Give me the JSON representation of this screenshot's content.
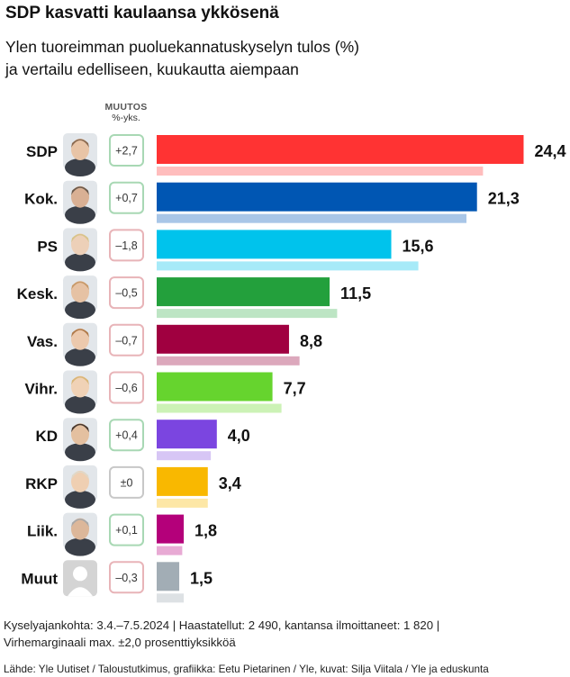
{
  "header": {
    "title": "SDP kasvatti kaulaansa ykkösenä",
    "subtitle_line1": "Ylen tuoreimman puoluekannatuskyselyn tulos (%)",
    "subtitle_line2": "ja vertailu edelliseen, kuukautta aiempaan"
  },
  "change_header": {
    "line1": "MUUTOS",
    "line2": "%-yks."
  },
  "colors": {
    "positive_border": "#a8d8b4",
    "negative_border": "#e8b4b8",
    "neutral_border": "#c8c8c8",
    "avatar_placeholder": "#d4d4d4"
  },
  "chart_data": {
    "type": "bar",
    "orientation": "horizontal",
    "title": "SDP kasvatti kaulaansa ykkösenä",
    "series": [
      {
        "values": [
          24.4,
          21.3,
          15.6,
          11.5,
          8.8,
          7.7,
          4.0,
          3.4,
          1.8,
          1.5
        ]
      },
      {
        "values": [
          21.7,
          20.6,
          17.4,
          12.0,
          9.5,
          8.3,
          3.6,
          3.4,
          1.7,
          1.8
        ]
      }
    ],
    "categories": [
      "SDP",
      "Kok.",
      "PS",
      "Kesk.",
      "Vas.",
      "Vihr.",
      "KD",
      "RKP",
      "Liik.",
      "Muut"
    ],
    "value_labels": [
      "24,4",
      "21,3",
      "15,6",
      "11,5",
      "8,8",
      "7,7",
      "4,0",
      "3,4",
      "1,8",
      "1,5"
    ],
    "changes": [
      2.7,
      0.7,
      -1.8,
      -0.5,
      -0.7,
      -0.6,
      0.4,
      0,
      0.1,
      -0.3
    ],
    "change_labels": [
      "+2,7",
      "+0,7",
      "–1,8",
      "–0,5",
      "–0,7",
      "–0,6",
      "+0,4",
      "±0",
      "+0,1",
      "–0,3"
    ],
    "colors": [
      "#ff3333",
      "#0056b3",
      "#00c3ec",
      "#23a03c",
      "#a00040",
      "#66d42e",
      "#7b45e0",
      "#f9b800",
      "#b4007a",
      "#a2adb5"
    ],
    "previous_colors": [
      "#ffbdbd",
      "#a9c6e7",
      "#a7eaf8",
      "#bde5c4",
      "#dca8bc",
      "#ccf2b6",
      "#d7c6f5",
      "#fde7a6",
      "#e8aad4",
      "#dde1e4"
    ],
    "xlim": [
      0,
      25
    ]
  },
  "footer": {
    "line1": "Kyselyajankohta: 3.4.–7.5.2024 | Haastatellut: 2 490, kantansa ilmoittaneet: 1 820 |",
    "line2": "Virhemarginaali max. ±2,0 prosenttiyksikköä",
    "source": "Lähde: Yle Uutiset / Taloustutkimus, grafiikka: Eetu Pietarinen / Yle, kuvat: Silja Viitala / Yle ja eduskunta"
  }
}
